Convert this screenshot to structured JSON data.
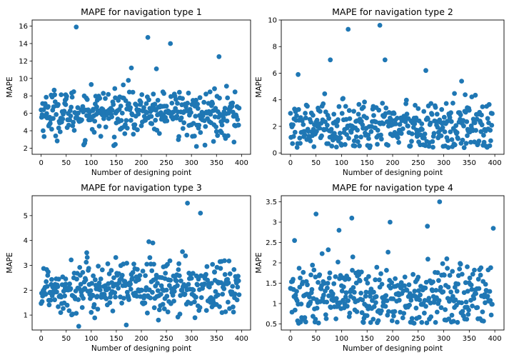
{
  "figure": {
    "point_color": "#1f77b4"
  },
  "chart_data": [
    {
      "type": "scatter",
      "title": "MAPE for navigation type 1",
      "xlabel": "Number of designing point",
      "ylabel": "MAPE",
      "xlim": [
        -18,
        418
      ],
      "ylim": [
        1.3,
        16.7
      ],
      "xticks": [
        0,
        50,
        100,
        150,
        200,
        250,
        300,
        350,
        400
      ],
      "yticks": [
        2,
        4,
        6,
        8,
        10,
        12,
        14,
        16
      ],
      "grid": false,
      "n_points": 400,
      "base": 6.1,
      "spread": 1.3,
      "outliers": [
        [
          70,
          15.9
        ],
        [
          213,
          14.7
        ],
        [
          258,
          14.0
        ],
        [
          355,
          12.5
        ],
        [
          145,
          2.3
        ],
        [
          310,
          2.2
        ],
        [
          385,
          2.7
        ],
        [
          88,
          2.9
        ],
        [
          180,
          11.2
        ],
        [
          230,
          11.1
        ],
        [
          100,
          9.3
        ]
      ]
    },
    {
      "type": "scatter",
      "title": "MAPE for navigation type 2",
      "xlabel": "Number of designing point",
      "ylabel": "MAPE",
      "xlim": [
        -18,
        418
      ],
      "ylim": [
        -0.1,
        10
      ],
      "xticks": [
        0,
        50,
        100,
        150,
        200,
        250,
        300,
        350,
        400
      ],
      "yticks": [
        0,
        2,
        4,
        6,
        8,
        10
      ],
      "grid": false,
      "n_points": 400,
      "base": 2.0,
      "spread": 1.0,
      "outliers": [
        [
          113,
          9.3
        ],
        [
          175,
          9.6
        ],
        [
          78,
          7.0
        ],
        [
          185,
          7.0
        ],
        [
          15,
          5.9
        ],
        [
          265,
          6.2
        ],
        [
          335,
          5.4
        ],
        [
          155,
          0.4
        ],
        [
          340,
          0.4
        ]
      ]
    },
    {
      "type": "scatter",
      "title": "MAPE for navigation type 3",
      "xlabel": "Number of designing point",
      "ylabel": "MAPE",
      "xlim": [
        -18,
        418
      ],
      "ylim": [
        0.4,
        5.8
      ],
      "xticks": [
        0,
        50,
        100,
        150,
        200,
        250,
        300,
        350,
        400
      ],
      "yticks": [
        1,
        2,
        3,
        4,
        5
      ],
      "grid": false,
      "n_points": 400,
      "base": 2.1,
      "spread": 0.55,
      "outliers": [
        [
          292,
          5.5
        ],
        [
          318,
          5.1
        ],
        [
          215,
          3.95
        ],
        [
          223,
          3.9
        ],
        [
          75,
          0.55
        ],
        [
          170,
          0.6
        ]
      ]
    },
    {
      "type": "scatter",
      "title": "MAPE for navigation type 4",
      "xlabel": "Number of designing point",
      "ylabel": "MAPE",
      "xlim": [
        -18,
        418
      ],
      "ylim": [
        0.35,
        3.65
      ],
      "xticks": [
        0,
        50,
        100,
        150,
        200,
        250,
        300,
        350,
        400
      ],
      "yticks": [
        0.5,
        1.0,
        1.5,
        2.0,
        2.5,
        3.0,
        3.5
      ],
      "grid": false,
      "n_points": 400,
      "base": 1.15,
      "spread": 0.42,
      "outliers": [
        [
          292,
          3.5
        ],
        [
          50,
          3.2
        ],
        [
          120,
          3.1
        ],
        [
          195,
          3.0
        ],
        [
          268,
          2.9
        ],
        [
          397,
          2.85
        ],
        [
          95,
          2.8
        ],
        [
          8,
          2.55
        ]
      ]
    }
  ]
}
